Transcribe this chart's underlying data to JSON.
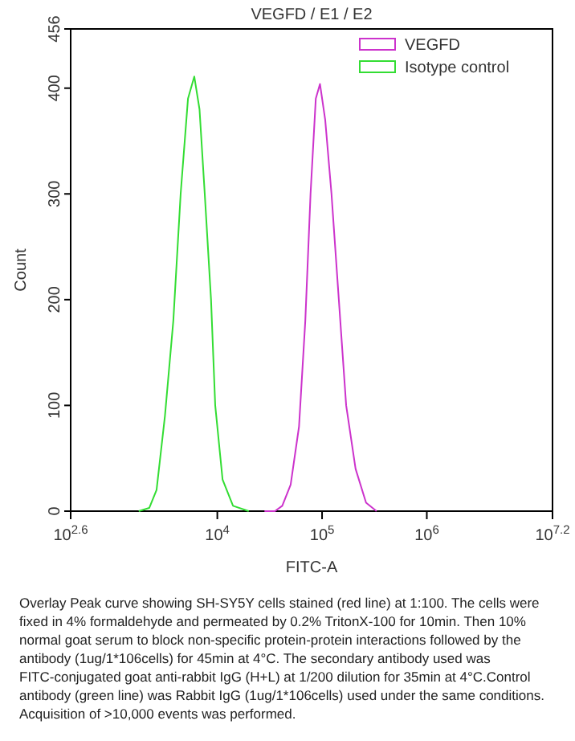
{
  "chart_data": {
    "type": "line",
    "title": "VEGFD / E1 / E2",
    "xlabel": "FITC-A",
    "ylabel": "Count",
    "log": "x",
    "legend": "top right",
    "grid": false,
    "marker": "none",
    "line_style": "solid",
    "xlim": [
      398.107,
      15848932
    ],
    "xticks": [
      {
        "value": 398.107,
        "label": "10$^{2.6}$"
      },
      {
        "value": 10000,
        "label": "10$^{4}$"
      },
      {
        "value": 100000,
        "label": "10$^{5}$"
      },
      {
        "value": 1000000,
        "label": "10$^{6}$"
      },
      {
        "value": 15848932,
        "label": "10$^{7.2}$"
      }
    ],
    "ylim": [
      0,
      456
    ],
    "yticks": [
      0,
      100,
      200,
      300,
      400,
      456
    ],
    "series": [
      {
        "name": "VEGFD",
        "color": "#cc33cc",
        "x": [
          28184,
          35481,
          41687,
          50119,
          60256,
          69183,
          77625,
          87096,
          95499,
          107152,
          123027,
          144544,
          169824,
          208930,
          263027,
          331131
        ],
        "values": [
          0,
          0,
          5,
          25,
          80,
          180,
          300,
          390,
          404,
          370,
          300,
          200,
          100,
          40,
          8,
          0
        ]
      },
      {
        "name": "Isotype control",
        "color": "#33dd33",
        "x": [
          1778,
          2239,
          2630,
          3162,
          3802,
          4467,
          5248,
          6026,
          6761,
          7586,
          8710,
          9550,
          11220,
          14125,
          19953
        ],
        "values": [
          0,
          3,
          20,
          90,
          180,
          300,
          390,
          411,
          380,
          300,
          200,
          100,
          30,
          5,
          0
        ]
      }
    ],
    "annotations": [
      "Overlay Peak curve showing SH-SY5Y cells stained (red line) at 1:100. The cells were fixed in 4% formaldehyde and permeated by 0.2% TritonX-100 for 10min. Then 10% normal goat serum to block non-specific protein-protein interactions followed by the antibody (1ug/1*106cells) for 45min at 4°C. The secondary antibody used was FITC-conjugated goat anti-rabbit IgG (H+L) at 1/200 dilution for 35min at 4°C.Control antibody (green line) was Rabbit IgG (1ug/1*106cells) used under the same conditions. Acquisition of >10,000 events was performed."
    ]
  }
}
